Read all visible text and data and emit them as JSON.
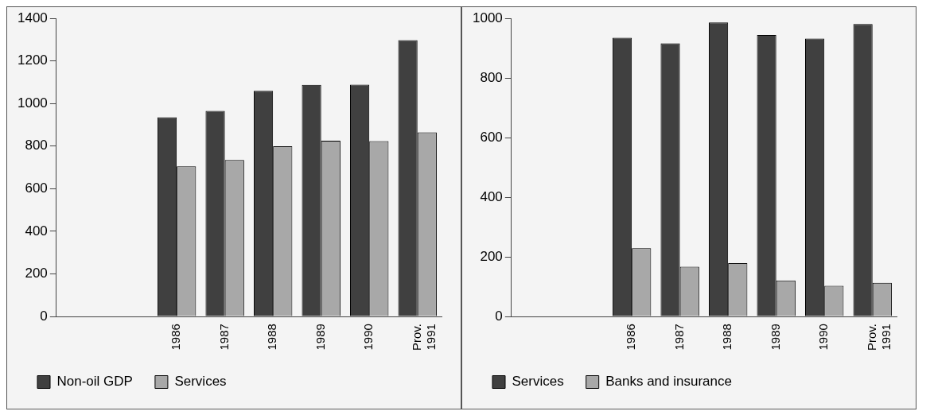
{
  "chart_data": [
    {
      "type": "bar",
      "categories": [
        null,
        null,
        "1986",
        "1987",
        "1988",
        "1989",
        "1990",
        "Prov. 1991"
      ],
      "series": [
        {
          "name": "Non-oil GDP",
          "color": "#404040",
          "values": [
            null,
            null,
            935,
            965,
            1059,
            1087,
            1088,
            1297
          ]
        },
        {
          "name": "Services",
          "color": "#a8a8a8",
          "values": [
            null,
            null,
            705,
            735,
            799,
            825,
            823,
            864
          ]
        }
      ],
      "ylim": [
        0,
        1400
      ],
      "yticks": [
        0,
        200,
        400,
        600,
        800,
        1000,
        1200,
        1400
      ],
      "grid": false,
      "legend": "bottom"
    },
    {
      "type": "bar",
      "categories": [
        null,
        null,
        "1986",
        "1987",
        "1988",
        "1989",
        "1990",
        "Prov. 1991"
      ],
      "series": [
        {
          "name": "Services",
          "color": "#404040",
          "values": [
            null,
            null,
            935,
            916,
            986,
            944,
            932,
            981
          ]
        },
        {
          "name": "Banks and insurance",
          "color": "#a8a8a8",
          "values": [
            null,
            null,
            229,
            167,
            179,
            121,
            103,
            113
          ]
        }
      ],
      "ylim": [
        0,
        1000
      ],
      "yticks": [
        0,
        200,
        400,
        600,
        800,
        1000
      ],
      "grid": false,
      "legend": "bottom"
    }
  ]
}
